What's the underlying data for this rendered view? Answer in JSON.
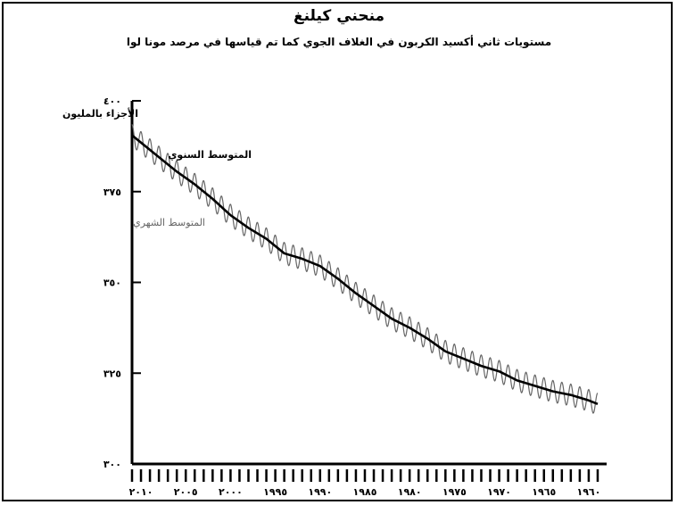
{
  "chart_data": {
    "type": "line",
    "title": "منحني كيلنغ",
    "subtitle": "مستويات ثاني أكسيد الكربون في الغلاف الجوي كما تم قياسها في مرصد مونا لوا",
    "ylabel": "الأجزاء بالمليون",
    "y_ticks": [
      "٣٠٠",
      "٣٢٥",
      "٣٥٠",
      "٣٧٥",
      "٤٠٠"
    ],
    "y_tick_values": [
      300,
      325,
      350,
      375,
      400
    ],
    "x_ticks": [
      "٢٠١٠",
      "٢٠٠٥",
      "٢٠٠٠",
      "١٩٩٥",
      "١٩٩٠",
      "١٩٨٥",
      "١٩٨٠",
      "١٩٧٥",
      "١٩٧٠",
      "١٩٦٥",
      "١٩٦٠"
    ],
    "x_tick_values": [
      2010,
      2005,
      2000,
      1995,
      1990,
      1985,
      1980,
      1975,
      1970,
      1965,
      1960
    ],
    "xlim": [
      2011,
      1958
    ],
    "ylim": [
      300,
      400
    ],
    "x_reversed": true,
    "series": [
      {
        "name": "المتوسط السنوي",
        "color": "#000000",
        "style": "solid-thick",
        "x": [
          2011,
          2010,
          2008,
          2006,
          2004,
          2002,
          2000,
          1998,
          1996,
          1994,
          1992,
          1990,
          1988,
          1986,
          1984,
          1982,
          1980,
          1978,
          1976,
          1974,
          1972,
          1970,
          1968,
          1966,
          1964,
          1962,
          1960,
          1959
        ],
        "y": [
          390.5,
          388.5,
          384.5,
          380.5,
          377,
          373,
          368.5,
          365,
          362,
          358,
          356.5,
          354.5,
          351,
          347,
          343.5,
          340,
          337.5,
          334.5,
          331,
          329,
          327,
          325.5,
          323,
          321.5,
          320,
          319,
          317.5,
          316.5
        ]
      },
      {
        "name": "المتوسط الشهري",
        "color": "#666666",
        "style": "thin-seasonal",
        "seasonal_amplitude": 3,
        "x": [
          2011,
          1959
        ],
        "y": [
          390.5,
          316.5
        ]
      }
    ]
  }
}
